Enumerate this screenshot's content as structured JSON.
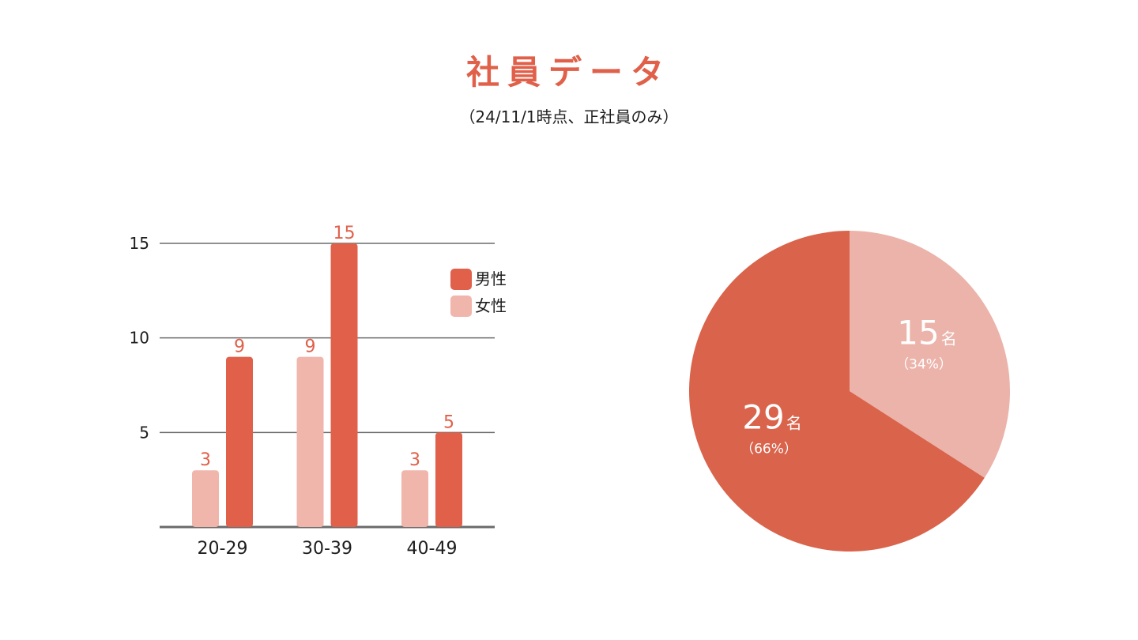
{
  "header": {
    "title": "社員データ",
    "subtitle": "（24/11/1時点、正社員のみ）"
  },
  "chart_data": [
    {
      "type": "bar",
      "categories": [
        "20-29",
        "30-39",
        "40-49"
      ],
      "series": [
        {
          "name": "女性",
          "values": [
            3,
            9,
            3
          ],
          "color": "#f0b5ab"
        },
        {
          "name": "男性",
          "values": [
            9,
            15,
            5
          ],
          "color": "#e0604a"
        }
      ],
      "ylim": [
        0,
        15
      ],
      "yticks": [
        5,
        10,
        15
      ],
      "legend": {
        "placement": "top-right",
        "order": [
          "男性",
          "女性"
        ]
      },
      "grid": true
    },
    {
      "type": "pie",
      "slices": [
        {
          "value": 15,
          "unit": "名",
          "percent_label": "（34%）",
          "color": "#ebb3aa"
        },
        {
          "value": 29,
          "unit": "名",
          "percent_label": "（66%）",
          "color": "#d9634b"
        }
      ]
    }
  ]
}
